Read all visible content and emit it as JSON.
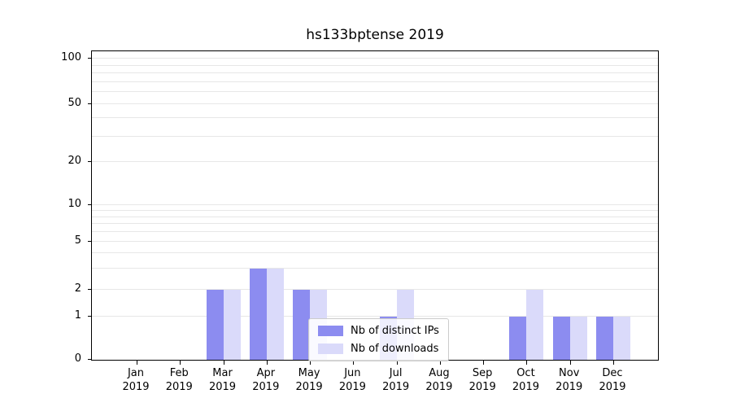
{
  "chart_data": {
    "type": "bar",
    "title": "hs133bptense 2019",
    "categories": [
      "Jan 2019",
      "Feb 2019",
      "Mar 2019",
      "Apr 2019",
      "May 2019",
      "Jun 2019",
      "Jul 2019",
      "Aug 2019",
      "Sep 2019",
      "Oct 2019",
      "Nov 2019",
      "Dec 2019"
    ],
    "x_tick_month": [
      "Jan",
      "Feb",
      "Mar",
      "Apr",
      "May",
      "Jun",
      "Jul",
      "Aug",
      "Sep",
      "Oct",
      "Nov",
      "Dec"
    ],
    "x_tick_year": "2019",
    "series": [
      {
        "name": "Nb of distinct IPs",
        "color": "#8c8cf0",
        "values": [
          0,
          0,
          2,
          3,
          2,
          0,
          1,
          0,
          0,
          1,
          1,
          1
        ]
      },
      {
        "name": "Nb of downloads",
        "color": "#dadafa",
        "values": [
          0,
          0,
          2,
          3,
          2,
          0,
          2,
          0,
          0,
          2,
          1,
          1
        ]
      }
    ],
    "xlabel": "",
    "ylabel": "",
    "yscale": "symlog",
    "ylim": [
      0,
      110
    ],
    "y_ticks": [
      0,
      1,
      2,
      5,
      10,
      20,
      50,
      100
    ],
    "y_minor_gridlines": [
      3,
      4,
      6,
      7,
      8,
      9,
      30,
      40,
      60,
      70,
      80,
      90
    ],
    "grid": true,
    "legend_position": "lower center",
    "colors": {
      "grid": "#e7e7e7",
      "axis": "#000000",
      "legend_border": "#cccccc"
    }
  }
}
